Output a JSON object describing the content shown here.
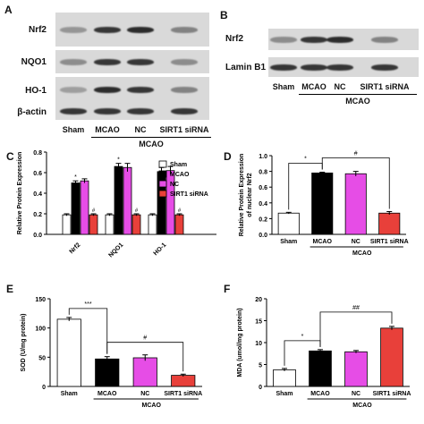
{
  "panels": {
    "A": {
      "letter": "A",
      "rows": [
        "Nrf2",
        "NQO1",
        "HO-1",
        "β-actin"
      ],
      "lanes": [
        "Sham",
        "MCAO",
        "NC",
        "SIRT1 siRNA"
      ],
      "group_label": "MCAO",
      "band_intensity": [
        [
          0.35,
          0.85,
          0.9,
          0.45
        ],
        [
          0.4,
          0.85,
          0.85,
          0.4
        ],
        [
          0.3,
          0.9,
          0.85,
          0.45
        ],
        [
          0.85,
          0.85,
          0.85,
          0.85
        ]
      ]
    },
    "B": {
      "letter": "B",
      "rows": [
        "Nrf2",
        "Lamin B1"
      ],
      "lanes": [
        "Sham",
        "MCAO",
        "NC",
        "SIRT1 siRNA"
      ],
      "group_label": "MCAO",
      "band_intensity": [
        [
          0.4,
          0.85,
          0.9,
          0.45
        ],
        [
          0.85,
          0.85,
          0.85,
          0.85
        ]
      ]
    },
    "C": {
      "letter": "C"
    },
    "D": {
      "letter": "D"
    },
    "E": {
      "letter": "E"
    },
    "F": {
      "letter": "F"
    }
  },
  "colors": {
    "sham": "#ffffff",
    "mcao": "#000000",
    "nc": "#e64de6",
    "sirt1": "#e8403a"
  },
  "chart_data": [
    {
      "id": "C",
      "type": "bar",
      "ylabel": "Relative Protein Expression",
      "ylim": [
        0,
        0.8
      ],
      "yticks": [
        "0.0",
        "0.2",
        "0.4",
        "0.6",
        "0.8"
      ],
      "categories": [
        "Nrf2",
        "NQO1",
        "HO-1"
      ],
      "legend": [
        "Sham",
        "MCAO",
        "NC",
        "SIRT1 siRNA"
      ],
      "series": [
        {
          "name": "Sham",
          "values": [
            0.19,
            0.19,
            0.19
          ],
          "errors": [
            0.01,
            0.01,
            0.01
          ]
        },
        {
          "name": "MCAO",
          "values": [
            0.5,
            0.66,
            0.61
          ],
          "errors": [
            0.02,
            0.03,
            0.04
          ]
        },
        {
          "name": "NC",
          "values": [
            0.52,
            0.65,
            0.62
          ],
          "errors": [
            0.02,
            0.04,
            0.04
          ]
        },
        {
          "name": "SIRT1 siRNA",
          "values": [
            0.19,
            0.19,
            0.19
          ],
          "errors": [
            0.01,
            0.01,
            0.01
          ]
        }
      ],
      "annotations": {
        "mcao_mark": "*",
        "sirt1_mark": "#"
      }
    },
    {
      "id": "D",
      "type": "bar",
      "ylabel": "Relative Protein Expression\nof nuclear Nrf2",
      "ylim": [
        0,
        1.0
      ],
      "yticks": [
        "0.0",
        "0.2",
        "0.4",
        "0.6",
        "0.8",
        "1.0"
      ],
      "categories": [
        "Sham",
        "MCAO",
        "NC",
        "SIRT1 siRNA"
      ],
      "values": [
        0.27,
        0.78,
        0.77,
        0.27
      ],
      "errors": [
        0.01,
        0.01,
        0.03,
        0.02
      ],
      "group_label": "MCAO",
      "brackets": [
        {
          "from": 0,
          "to": 1,
          "mark": "*"
        },
        {
          "from": 1,
          "to": 3,
          "mark": "#"
        }
      ]
    },
    {
      "id": "E",
      "type": "bar",
      "ylabel": "SOD (U/mg protein)",
      "ylim": [
        0,
        150
      ],
      "yticks": [
        "0",
        "50",
        "100",
        "150"
      ],
      "categories": [
        "Sham",
        "MCAO",
        "NC",
        "SIRT1 siRNA"
      ],
      "values": [
        115,
        47,
        49,
        19
      ],
      "errors": [
        3,
        4,
        5,
        2
      ],
      "group_label": "MCAO",
      "brackets": [
        {
          "from": 0,
          "to": 1,
          "mark": "***"
        },
        {
          "from": 1,
          "to": 3,
          "mark": "#"
        }
      ]
    },
    {
      "id": "F",
      "type": "bar",
      "ylabel": "MDA (umol/mg protein)",
      "ylim": [
        0,
        20
      ],
      "yticks": [
        "0",
        "5",
        "10",
        "15",
        "20"
      ],
      "categories": [
        "Sham",
        "MCAO",
        "NC",
        "SIRT1 siRNA"
      ],
      "values": [
        3.8,
        8.1,
        7.9,
        13.3
      ],
      "errors": [
        0.3,
        0.3,
        0.3,
        0.4
      ],
      "group_label": "MCAO",
      "brackets": [
        {
          "from": 0,
          "to": 1,
          "mark": "*"
        },
        {
          "from": 1,
          "to": 3,
          "mark": "##"
        }
      ]
    }
  ]
}
